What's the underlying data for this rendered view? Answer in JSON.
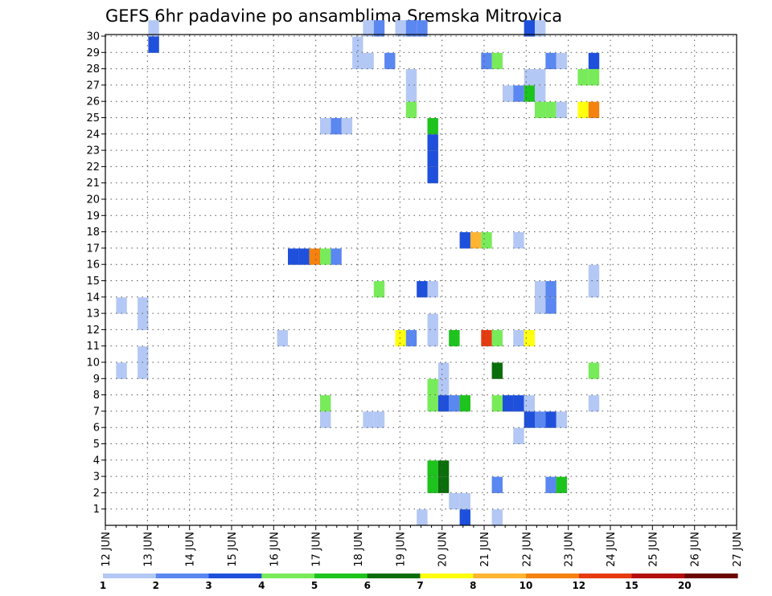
{
  "chart_data": {
    "type": "heatmap",
    "title": "GEFS 6hr padavine po ansamblima Sremska Mitrovica",
    "xlabel": "",
    "ylabel": "",
    "x_labels": [
      "12 JUN",
      "13 JUN",
      "14 JUN",
      "15 JUN",
      "16 JUN",
      "17 JUN",
      "18 JUN",
      "19 JUN",
      "20 JUN",
      "21 JUN",
      "22 JUN",
      "23 JUN",
      "24 JUN",
      "25 JUN",
      "26 JUN",
      "27 JUN"
    ],
    "xlim": [
      0,
      60
    ],
    "y_labels": [
      "1",
      "2",
      "3",
      "4",
      "5",
      "6",
      "7",
      "8",
      "9",
      "10",
      "11",
      "12",
      "13",
      "14",
      "15",
      "16",
      "17",
      "18",
      "19",
      "20",
      "21",
      "22",
      "23",
      "24",
      "25",
      "26",
      "27",
      "28",
      "29",
      "30"
    ],
    "ylim": [
      0,
      30
    ],
    "grid": true,
    "legend": {
      "position": "bottom",
      "labels": [
        "1",
        "2",
        "3",
        "4",
        "5",
        "6",
        "7",
        "8",
        "10",
        "12",
        "15",
        "20"
      ],
      "colors": [
        "#b4c8f5",
        "#5a87f0",
        "#1e50dc",
        "#78eb5a",
        "#1ec31e",
        "#0a6e0a",
        "#ffff0f",
        "#ffb432",
        "#f5820f",
        "#e63c0f",
        "#b40f0f",
        "#6e0505"
      ]
    },
    "cells": [
      [
        4,
        30,
        0
      ],
      [
        4,
        29,
        2
      ],
      [
        24,
        30,
        0
      ],
      [
        25,
        30,
        1
      ],
      [
        27,
        30,
        0
      ],
      [
        28,
        30,
        1
      ],
      [
        29,
        30,
        1
      ],
      [
        39,
        30,
        2
      ],
      [
        40,
        30,
        0
      ],
      [
        23,
        29,
        0
      ],
      [
        23,
        28,
        0
      ],
      [
        24,
        28,
        0
      ],
      [
        26,
        28,
        1
      ],
      [
        35,
        28,
        1
      ],
      [
        36,
        28,
        3
      ],
      [
        41,
        28,
        1
      ],
      [
        42,
        28,
        0
      ],
      [
        45,
        28,
        2
      ],
      [
        28,
        27,
        0
      ],
      [
        39,
        27,
        0
      ],
      [
        40,
        27,
        0
      ],
      [
        44,
        27,
        3
      ],
      [
        45,
        27,
        3
      ],
      [
        28,
        26,
        0
      ],
      [
        37,
        26,
        0
      ],
      [
        38,
        26,
        1
      ],
      [
        39,
        26,
        4
      ],
      [
        40,
        26,
        0
      ],
      [
        28,
        25,
        3
      ],
      [
        40,
        25,
        3
      ],
      [
        41,
        25,
        3
      ],
      [
        42,
        25,
        0
      ],
      [
        44,
        25,
        6
      ],
      [
        45,
        25,
        8
      ],
      [
        20,
        24,
        0
      ],
      [
        21,
        24,
        1
      ],
      [
        22,
        24,
        0
      ],
      [
        30,
        24,
        4
      ],
      [
        30,
        23,
        2
      ],
      [
        30,
        22,
        2
      ],
      [
        30,
        21,
        2
      ],
      [
        33,
        17,
        2
      ],
      [
        34,
        17,
        7
      ],
      [
        35,
        17,
        3
      ],
      [
        38,
        17,
        0
      ],
      [
        17,
        16,
        2
      ],
      [
        18,
        16,
        2
      ],
      [
        19,
        16,
        8
      ],
      [
        20,
        16,
        3
      ],
      [
        21,
        16,
        1
      ],
      [
        45,
        15,
        0
      ],
      [
        45,
        14,
        0
      ],
      [
        25,
        14,
        3
      ],
      [
        29,
        14,
        2
      ],
      [
        30,
        14,
        0
      ],
      [
        40,
        14,
        0
      ],
      [
        41,
        14,
        1
      ],
      [
        1,
        13,
        0
      ],
      [
        3,
        13,
        0
      ],
      [
        3,
        12,
        0
      ],
      [
        40,
        13,
        0
      ],
      [
        41,
        13,
        1
      ],
      [
        16,
        11,
        0
      ],
      [
        27,
        11,
        6
      ],
      [
        28,
        11,
        1
      ],
      [
        30,
        11,
        0
      ],
      [
        32,
        11,
        4
      ],
      [
        35,
        11,
        9
      ],
      [
        36,
        11,
        3
      ],
      [
        38,
        11,
        0
      ],
      [
        39,
        11,
        6
      ],
      [
        30,
        12,
        0
      ],
      [
        3,
        10,
        0
      ],
      [
        3,
        9,
        0
      ],
      [
        1,
        9,
        0
      ],
      [
        31,
        9,
        0
      ],
      [
        36,
        9,
        5
      ],
      [
        45,
        9,
        3
      ],
      [
        30,
        8,
        3
      ],
      [
        31,
        8,
        0
      ],
      [
        30,
        7,
        3
      ],
      [
        31,
        7,
        2
      ],
      [
        32,
        7,
        1
      ],
      [
        33,
        7,
        4
      ],
      [
        36,
        7,
        3
      ],
      [
        37,
        7,
        2
      ],
      [
        38,
        7,
        2
      ],
      [
        39,
        7,
        0
      ],
      [
        45,
        7,
        0
      ],
      [
        20,
        7,
        3
      ],
      [
        20,
        6,
        0
      ],
      [
        24,
        6,
        0
      ],
      [
        25,
        6,
        0
      ],
      [
        39,
        6,
        2
      ],
      [
        40,
        6,
        1
      ],
      [
        41,
        6,
        2
      ],
      [
        42,
        6,
        0
      ],
      [
        38,
        5,
        0
      ],
      [
        30,
        3,
        4
      ],
      [
        31,
        3,
        5
      ],
      [
        30,
        2,
        4
      ],
      [
        31,
        2,
        5
      ],
      [
        36,
        2,
        1
      ],
      [
        41,
        2,
        1
      ],
      [
        42,
        2,
        4
      ],
      [
        32,
        1,
        0
      ],
      [
        33,
        1,
        0
      ],
      [
        29,
        0,
        0
      ],
      [
        33,
        0,
        2
      ],
      [
        36,
        0,
        0
      ]
    ]
  }
}
